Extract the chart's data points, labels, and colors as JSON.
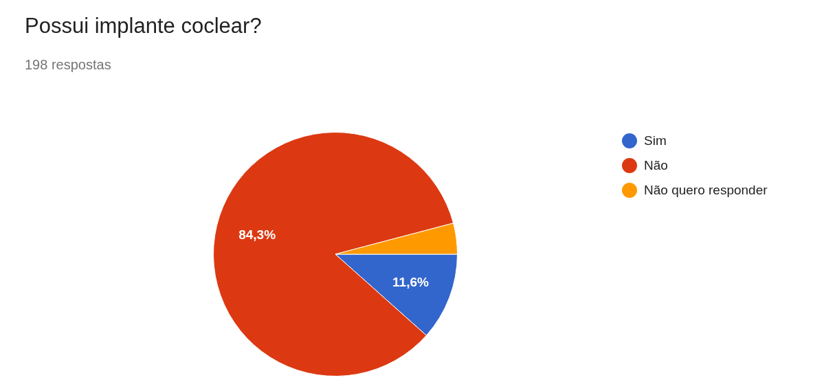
{
  "chart_data": {
    "type": "pie",
    "title": "Possui implante coclear?",
    "subtitle": "198 respostas",
    "categories": [
      "Sim",
      "Não",
      "Não quero responder"
    ],
    "values": [
      11.6,
      84.3,
      4.1
    ],
    "colors": [
      "#3366cc",
      "#dc3912",
      "#ff9900"
    ],
    "value_labels": [
      "11,6%",
      "84,3%",
      null
    ],
    "legend": "right"
  }
}
